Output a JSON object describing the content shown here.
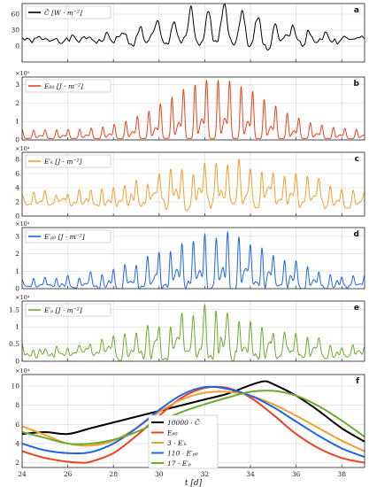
{
  "chart_data": [
    {
      "letter": "a",
      "type": "line",
      "legend": [
        "C̄ [W · m⁻²]"
      ],
      "colors": [
        "#000000"
      ],
      "ylim": [
        -30,
        80
      ],
      "yticks": [
        0,
        30,
        60
      ],
      "yticklabels": [
        "0",
        "30",
        "60"
      ],
      "exponent": "",
      "grid": true,
      "series": [
        {
          "name": "C̄",
          "color": "#000000",
          "params": {
            "base": 10,
            "amp": 5,
            "gauss_amp": 55,
            "center": 32.7,
            "width": 3.3,
            "period": 0.74,
            "sharp": 3,
            "noise": 9,
            "minv": -25,
            "seed": 1,
            "signed": true
          }
        }
      ]
    },
    {
      "letter": "b",
      "type": "line",
      "legend": [
        "E₆₀ [J · m⁻²]"
      ],
      "colors": [
        "#e8431e"
      ],
      "ylim": [
        0,
        340000
      ],
      "yticks": [
        0,
        100000,
        200000,
        300000
      ],
      "yticklabels": [
        "0",
        "1",
        "2",
        "3"
      ],
      "exponent": "×10⁵",
      "grid": true,
      "series": [
        {
          "name": "E₆₀",
          "color": "#e8431e",
          "params": {
            "base": 8000,
            "amp": 45000,
            "gauss_amp": 270000,
            "center": 32.5,
            "width": 3.0,
            "period": 0.505,
            "sharp": 5,
            "noise": 0,
            "minv": 0,
            "seed": 2,
            "signed": false
          }
        }
      ]
    },
    {
      "letter": "c",
      "type": "line",
      "legend": [
        "E′ₖ [J · m⁻²]"
      ],
      "colors": [
        "#f0a030"
      ],
      "ylim": [
        0,
        90000
      ],
      "yticks": [
        0,
        20000,
        40000,
        60000,
        80000
      ],
      "yticklabels": [
        "0",
        "2",
        "4",
        "6",
        "8"
      ],
      "exponent": "×10⁴",
      "grid": true,
      "series": [
        {
          "name": "E′ₖ",
          "color": "#f0a030",
          "params": {
            "base": 16000,
            "amp": 15000,
            "gauss_amp": 42000,
            "center": 33.0,
            "width": 4.2,
            "period": 0.5,
            "sharp": 4,
            "noise": 7000,
            "minv": 5000,
            "seed": 3,
            "signed": false
          }
        }
      ]
    },
    {
      "letter": "d",
      "type": "line",
      "legend": [
        "E′ₚ₀ [J · m⁻²]"
      ],
      "colors": [
        "#1e64e6"
      ],
      "ylim": [
        0,
        3500
      ],
      "yticks": [
        0,
        1000,
        2000,
        3000
      ],
      "yticklabels": [
        "0",
        "1",
        "2",
        "3"
      ],
      "exponent": "×10³",
      "grid": true,
      "series": [
        {
          "name": "E′ₚ₀",
          "color": "#1e64e6",
          "params": {
            "base": 100,
            "amp": 500,
            "gauss_amp": 2500,
            "center": 32.4,
            "width": 3.4,
            "period": 0.5,
            "sharp": 5,
            "noise": 250,
            "minv": 0,
            "seed": 4,
            "signed": false
          }
        }
      ]
    },
    {
      "letter": "e",
      "type": "line",
      "legend": [
        "E′ₚ [J · m⁻²]"
      ],
      "colors": [
        "#6aab2e"
      ],
      "ylim": [
        0,
        17500
      ],
      "yticks": [
        0,
        5000,
        10000,
        15000
      ],
      "yticklabels": [
        "0",
        "0.5",
        "1",
        "1.5"
      ],
      "exponent": "×10⁴",
      "grid": true,
      "series": [
        {
          "name": "E′ₚ",
          "color": "#6aab2e",
          "params": {
            "base": 1500,
            "amp": 2500,
            "gauss_amp": 10500,
            "center": 32.3,
            "width": 3.5,
            "period": 0.5,
            "sharp": 4,
            "noise": 2000,
            "minv": 0,
            "seed": 5,
            "signed": false
          }
        }
      ]
    },
    {
      "letter": "f",
      "type": "line",
      "legend_placement": "center",
      "ylim": [
        1.5,
        11.2
      ],
      "yticks": [
        2,
        4,
        6,
        8,
        10
      ],
      "yticklabels": [
        "2",
        "4",
        "6",
        "8",
        "10"
      ],
      "exponent": "×10⁴",
      "grid": true,
      "series": [
        {
          "name": "10000 · C̄",
          "color": "#000000",
          "x": [
            24,
            25,
            26,
            27,
            28,
            29,
            30,
            31,
            32,
            33,
            34,
            34.6,
            35,
            36,
            37,
            38,
            39
          ],
          "y": [
            5.0,
            5.2,
            5.0,
            5.6,
            6.2,
            6.8,
            7.4,
            8.0,
            8.6,
            9.2,
            10.1,
            10.5,
            10.2,
            9.0,
            7.4,
            5.6,
            4.2
          ]
        },
        {
          "name": "E₆₀",
          "color": "#e8431e",
          "x": [
            24,
            25,
            26,
            26.6,
            27,
            28,
            29,
            30,
            31,
            32,
            33,
            34,
            35,
            36,
            37,
            38,
            39
          ],
          "y": [
            3.2,
            2.5,
            2.1,
            2.0,
            2.1,
            3.0,
            4.8,
            6.9,
            8.8,
            9.8,
            9.8,
            8.8,
            7.0,
            5.0,
            3.5,
            2.5,
            2.0
          ]
        },
        {
          "name": "3 · E′ₖ",
          "color": "#f0a030",
          "x": [
            24,
            25,
            26,
            27,
            28,
            29,
            30,
            31,
            32,
            33,
            34,
            35,
            36,
            37,
            38,
            39
          ],
          "y": [
            5.8,
            4.9,
            4.0,
            3.8,
            4.3,
            5.6,
            7.3,
            8.6,
            9.3,
            9.4,
            9.0,
            8.1,
            6.9,
            5.6,
            4.3,
            3.2
          ]
        },
        {
          "name": "110 · E′ₚ₀",
          "color": "#1e64e6",
          "x": [
            24,
            25,
            26,
            27,
            28,
            29,
            30,
            31,
            32,
            33,
            34,
            35,
            36,
            37,
            38,
            39
          ],
          "y": [
            4.0,
            3.3,
            3.0,
            3.1,
            4.0,
            5.6,
            7.5,
            9.1,
            9.9,
            9.7,
            9.0,
            7.8,
            6.3,
            4.8,
            3.5,
            2.6
          ]
        },
        {
          "name": "17 · E′ₚ",
          "color": "#6aab2e",
          "x": [
            24,
            25,
            26,
            27,
            28,
            29,
            30,
            31,
            32,
            33,
            34,
            35,
            36,
            37,
            38,
            39
          ],
          "y": [
            5.2,
            4.6,
            4.0,
            4.0,
            4.4,
            5.2,
            6.3,
            7.3,
            8.1,
            8.8,
            9.4,
            9.5,
            9.0,
            7.9,
            6.4,
            4.7
          ]
        }
      ]
    }
  ],
  "xaxis": {
    "xlim": [
      24,
      39
    ],
    "ticks": [
      24,
      26,
      28,
      30,
      32,
      34,
      36,
      38
    ],
    "ticklabels": [
      "24",
      "26",
      "28",
      "30",
      "32",
      "34",
      "36",
      "38"
    ],
    "label": "t [d]"
  }
}
